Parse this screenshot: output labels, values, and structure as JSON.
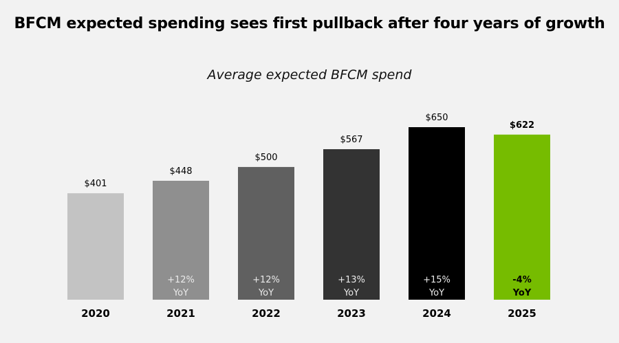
{
  "chart_data": {
    "type": "bar",
    "title": "BFCM expected spending sees first pullback after four years of growth",
    "subtitle": "Average expected BFCM spend",
    "xlabel": "",
    "ylabel": "",
    "categories": [
      "2020",
      "2021",
      "2022",
      "2023",
      "2024",
      "2025"
    ],
    "values": [
      401,
      448,
      500,
      567,
      650,
      622
    ],
    "value_labels": [
      "$401",
      "$448",
      "$500",
      "$567",
      "$650",
      "$622"
    ],
    "yoy_labels": [
      "",
      "+12%",
      "+12%",
      "+13%",
      "+15%",
      "-4%"
    ],
    "yoy_suffix": "YoY",
    "ylim": [
      0,
      650
    ],
    "grid": false,
    "legend": "none",
    "colors": [
      "#c3c3c3",
      "#8f8f8f",
      "#606060",
      "#333333",
      "#000000",
      "#76bc00"
    ],
    "highlight_index": 5
  }
}
